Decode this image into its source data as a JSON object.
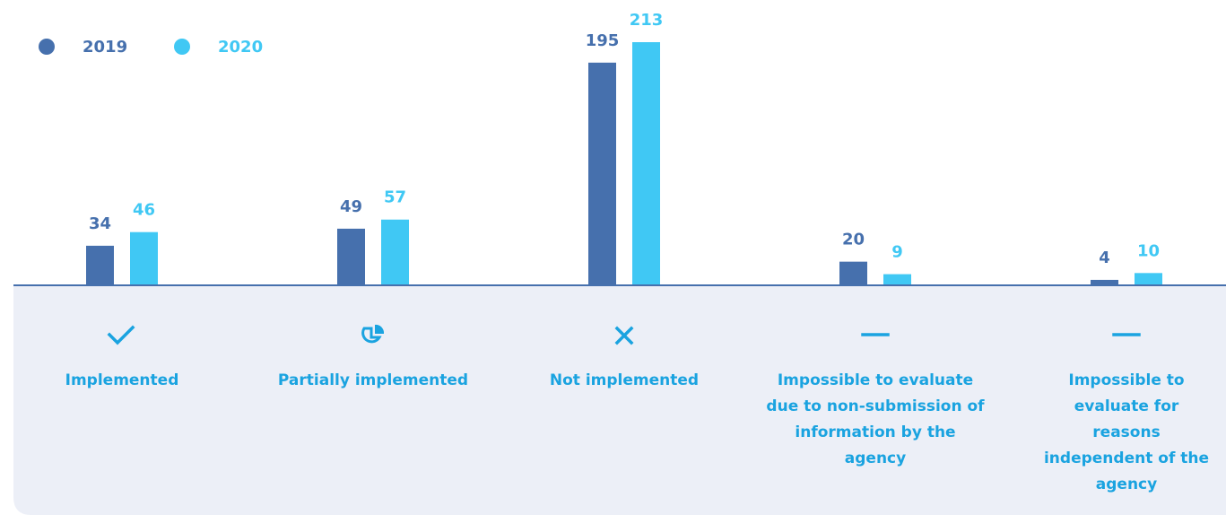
{
  "chart_data": {
    "type": "bar",
    "categories": [
      "Implemented",
      "Partially implemented",
      "Not implemented",
      "Impossible to evaluate due to non-submission of information by the agency",
      "Impossible to evaluate for reasons independent of the agency"
    ],
    "series": [
      {
        "name": "2019",
        "color": "#4670ad",
        "values": [
          34,
          49,
          195,
          20,
          4
        ]
      },
      {
        "name": "2020",
        "color": "#40c8f4",
        "values": [
          46,
          57,
          213,
          9,
          10
        ]
      }
    ],
    "legend": "top-left"
  }
}
